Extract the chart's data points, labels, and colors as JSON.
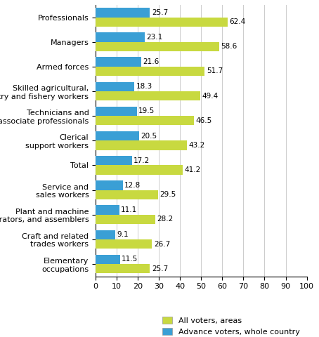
{
  "categories": [
    "Professionals",
    "Managers",
    "Armed forces",
    "Skilled agricultural,\nforestry and fishery workers",
    "Technicians and\nassociate professionals",
    "Clerical\nsupport workers",
    "Total",
    "Service and\nsales workers",
    "Plant and machine\noperators, and assemblers",
    "Craft and related\ntrades workers",
    "Elementary\noccupations"
  ],
  "all_voters": [
    62.4,
    58.6,
    51.7,
    49.4,
    46.5,
    43.2,
    41.2,
    29.5,
    28.2,
    26.7,
    25.7
  ],
  "advance_voters": [
    25.7,
    23.1,
    21.6,
    18.3,
    19.5,
    20.5,
    17.2,
    12.8,
    11.1,
    9.1,
    11.5
  ],
  "color_all": "#c8d940",
  "color_advance": "#3a9fd5",
  "bar_height": 0.38,
  "xlim": [
    0,
    100
  ],
  "xticks": [
    0,
    10,
    20,
    30,
    40,
    50,
    60,
    70,
    80,
    90,
    100
  ],
  "legend_all": "All voters, areas",
  "legend_advance": "Advance voters, whole country",
  "background_color": "#ffffff",
  "label_fontsize": 7.5,
  "tick_fontsize": 8,
  "legend_fontsize": 8
}
